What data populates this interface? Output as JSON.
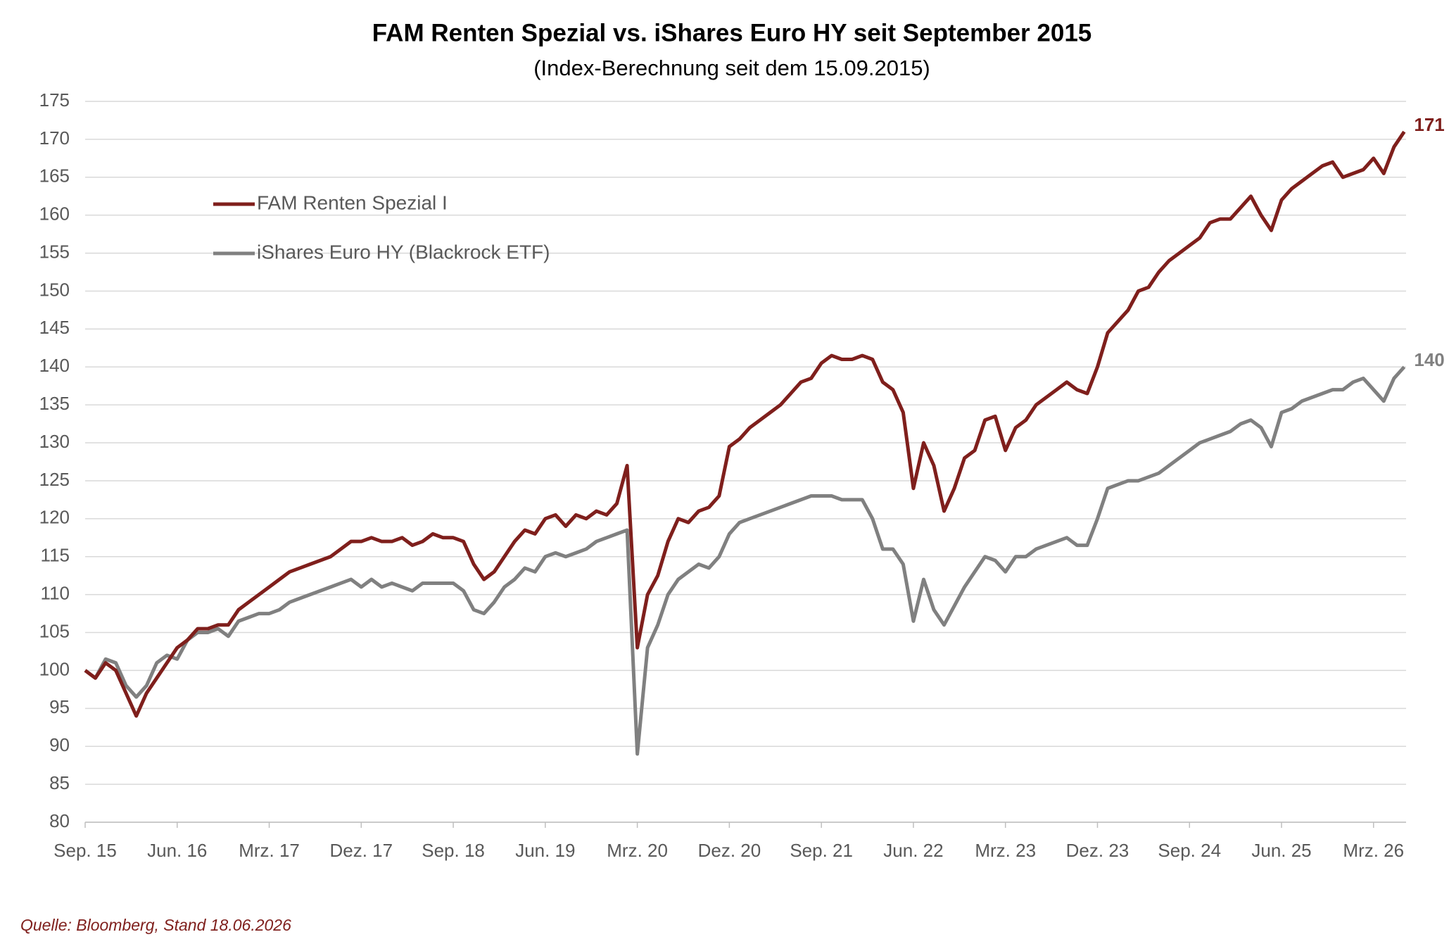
{
  "chart_data": {
    "type": "line",
    "title": "FAM Renten Spezial vs. iShares Euro HY seit September 2015",
    "subtitle": "(Index-Berechnung seit dem 15.09.2015)",
    "source": "Quelle: Bloomberg, Stand 18.06.2026",
    "categories": [
      "Sep. 15",
      null,
      null,
      null,
      null,
      null,
      null,
      null,
      null,
      "Jun. 16",
      null,
      null,
      null,
      null,
      null,
      null,
      null,
      null,
      "Mrz. 17",
      null,
      null,
      null,
      null,
      null,
      null,
      null,
      null,
      "Dez. 17",
      null,
      null,
      null,
      null,
      null,
      null,
      null,
      null,
      "Sep. 18",
      null,
      null,
      null,
      null,
      null,
      null,
      null,
      null,
      "Jun. 19",
      null,
      null,
      null,
      null,
      null,
      null,
      null,
      null,
      "Mrz. 20",
      null,
      null,
      null,
      null,
      null,
      null,
      null,
      null,
      "Dez. 20",
      null,
      null,
      null,
      null,
      null,
      null,
      null,
      null,
      "Sep. 21",
      null,
      null,
      null,
      null,
      null,
      null,
      null,
      null,
      "Jun. 22",
      null,
      null,
      null,
      null,
      null,
      null,
      null,
      null,
      "Mrz. 23",
      null,
      null,
      null,
      null,
      null,
      null,
      null,
      null,
      "Dez. 23",
      null,
      null,
      null,
      null,
      null,
      null,
      null,
      null,
      "Sep. 24",
      null,
      null,
      null,
      null,
      null,
      null,
      null,
      null,
      "Jun. 25",
      null,
      null,
      null,
      null,
      null,
      null,
      null,
      null,
      "Mrz. 26",
      null,
      null,
      null
    ],
    "series": [
      {
        "name": "FAM Renten Spezial I",
        "color": "#7f1f1c",
        "values": [
          100,
          99,
          101,
          100,
          97,
          94,
          97,
          99,
          101,
          103,
          104,
          105.5,
          105.5,
          106,
          106,
          108,
          109,
          110,
          111,
          112,
          113,
          113.5,
          114,
          114.5,
          115,
          116,
          117,
          117,
          117.5,
          117,
          117,
          117.5,
          116.5,
          117,
          118,
          117.5,
          117.5,
          117,
          114,
          112,
          113,
          115,
          117,
          118.5,
          118,
          120,
          120.5,
          119,
          120.5,
          120,
          121,
          120.5,
          122,
          127,
          103,
          110,
          112.5,
          117,
          120,
          119.5,
          121,
          121.5,
          123,
          129.5,
          130.5,
          132,
          133,
          134,
          135,
          136.5,
          138,
          138.5,
          140.5,
          141.5,
          141,
          141,
          141.5,
          141,
          138,
          137,
          134,
          124,
          130,
          127,
          121,
          124,
          128,
          129,
          133,
          133.5,
          129,
          132,
          133,
          135,
          136,
          137,
          138,
          137,
          136.5,
          140,
          144.5,
          146,
          147.5,
          150,
          150.5,
          152.5,
          154,
          155,
          156,
          157,
          159,
          159.5,
          159.5,
          161,
          162.5,
          160,
          158,
          162,
          163.5,
          164.5,
          165.5,
          166.5,
          167,
          165,
          165.5,
          166,
          167.5,
          165.5,
          169,
          171
        ]
      },
      {
        "name": "iShares Euro HY (Blackrock ETF)",
        "color": "#808080",
        "values": [
          100,
          99,
          101.5,
          101,
          98,
          96.5,
          98,
          101,
          102,
          101.5,
          104,
          105,
          105,
          105.5,
          104.5,
          106.5,
          107,
          107.5,
          107.5,
          108,
          109,
          109.5,
          110,
          110.5,
          111,
          111.5,
          112,
          111,
          112,
          111,
          111.5,
          111,
          110.5,
          111.5,
          111.5,
          111.5,
          111.5,
          110.5,
          108,
          107.5,
          109,
          111,
          112,
          113.5,
          113,
          115,
          115.5,
          115,
          115.5,
          116,
          117,
          117.5,
          118,
          118.5,
          89,
          103,
          106,
          110,
          112,
          113,
          114,
          113.5,
          115,
          118,
          119.5,
          120,
          120.5,
          121,
          121.5,
          122,
          122.5,
          123,
          123,
          123,
          122.5,
          122.5,
          122.5,
          120,
          116,
          116,
          114,
          106.5,
          112,
          108,
          106,
          108.5,
          111,
          113,
          115,
          114.5,
          113,
          115,
          115,
          116,
          116.5,
          117,
          117.5,
          116.5,
          116.5,
          120,
          124,
          124.5,
          125,
          125,
          125.5,
          126,
          127,
          128,
          129,
          130,
          130.5,
          131,
          131.5,
          132.5,
          133,
          132,
          129.5,
          134,
          134.5,
          135.5,
          136,
          136.5,
          137,
          137,
          138,
          138.5,
          137,
          135.5,
          138.5,
          140
        ]
      }
    ],
    "ylim": [
      80,
      175
    ],
    "yticks": [
      80,
      85,
      90,
      95,
      100,
      105,
      110,
      115,
      120,
      125,
      130,
      135,
      140,
      145,
      150,
      155,
      160,
      165,
      170,
      175
    ],
    "grid": true
  }
}
